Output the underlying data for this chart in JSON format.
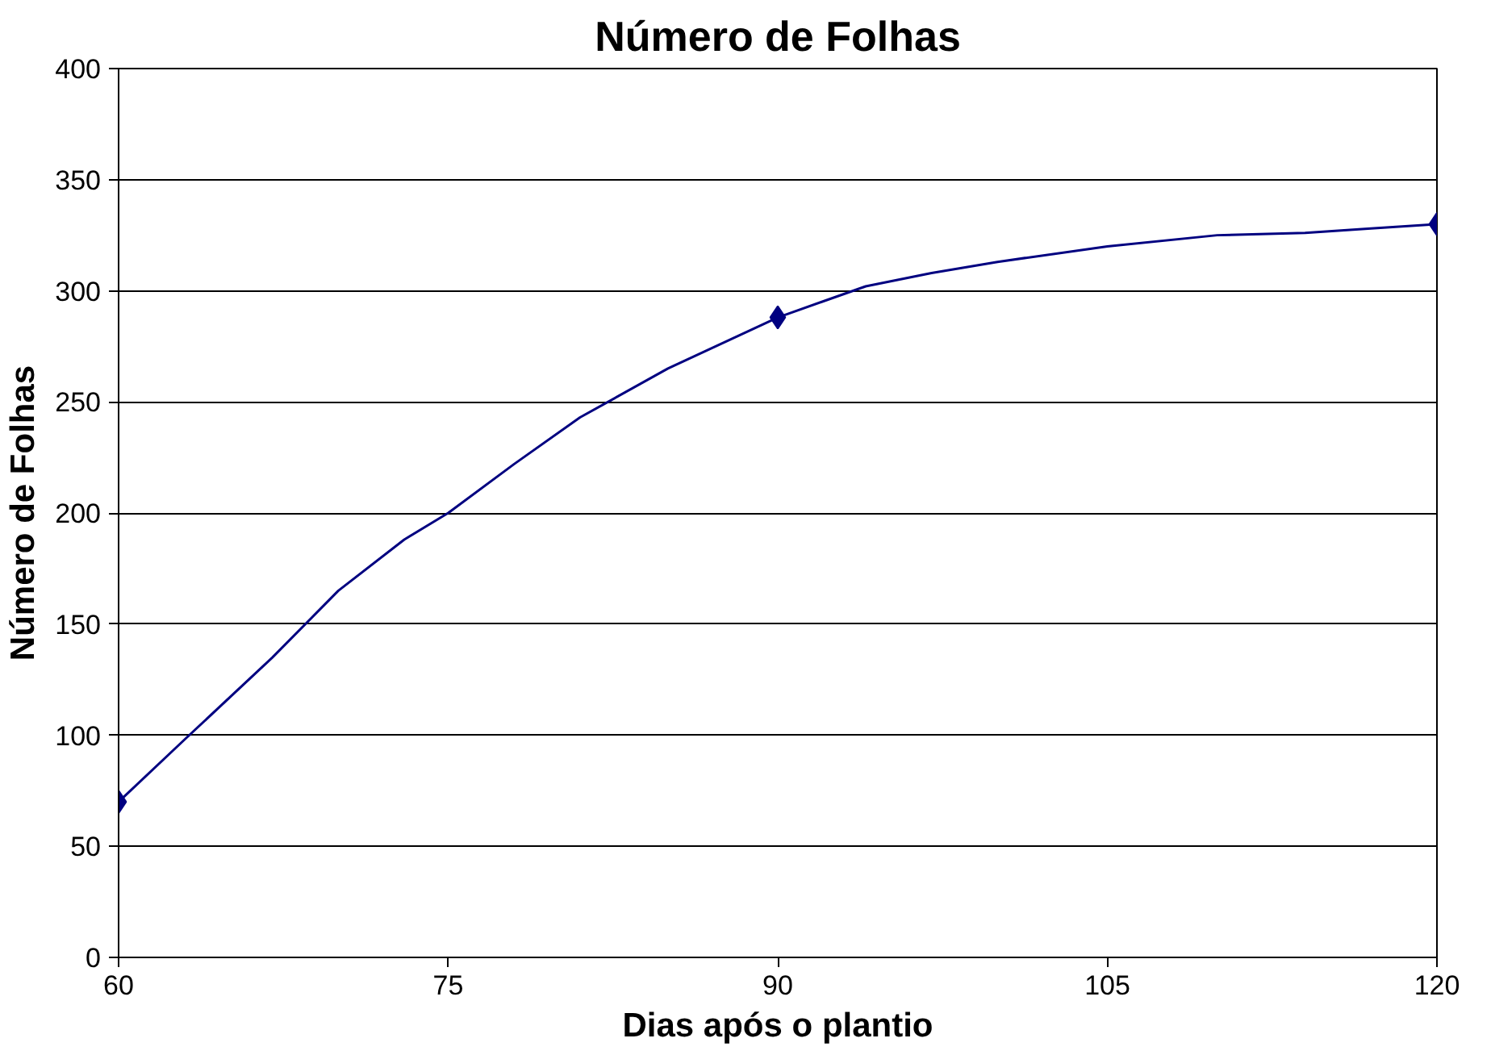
{
  "chart_data": {
    "type": "line",
    "title": "Número de Folhas",
    "xlabel": "Dias após o plantio",
    "ylabel": "Número de Folhas",
    "xlim": [
      60,
      120
    ],
    "xticks": [
      60,
      75,
      90,
      105,
      120
    ],
    "ylim": [
      0,
      400
    ],
    "yticks": [
      0,
      50,
      100,
      150,
      200,
      250,
      300,
      350,
      400
    ],
    "grid": "y",
    "series": [
      {
        "color": "#000080",
        "marker": "none",
        "x": [
          60,
          63,
          67,
          70,
          73,
          75,
          78,
          81,
          85,
          90,
          92,
          94,
          97,
          100,
          105,
          110,
          114,
          117,
          120
        ],
        "values": [
          70,
          98,
          135,
          165,
          188,
          200,
          222,
          243,
          265,
          288,
          295,
          302,
          308,
          313,
          320,
          325,
          326,
          328,
          330
        ]
      },
      {
        "type": "scatter",
        "color": "#000080",
        "marker": "diamond",
        "x": [
          60,
          90,
          120
        ],
        "values": [
          70,
          288,
          330
        ]
      }
    ]
  }
}
